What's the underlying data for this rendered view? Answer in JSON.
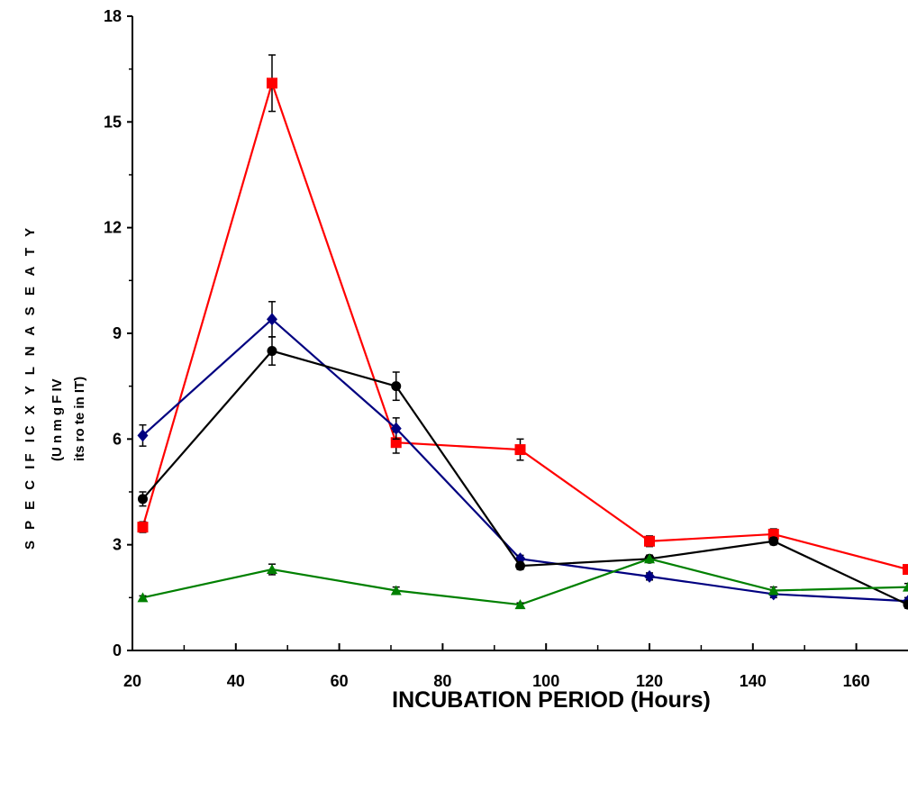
{
  "chart_data": {
    "type": "line",
    "title": "",
    "xlabel": "INCUBATION PERIOD (Hours)",
    "ylabel": {
      "main": "S P E C IF IC X Y L   N A S E A   T Y",
      "line2": "(U n   m g   F   IV",
      "line3": "its   ro te   in   IT)"
    },
    "xlim": [
      20,
      170
    ],
    "ylim": [
      0,
      18
    ],
    "x_ticks": [
      20,
      40,
      60,
      80,
      100,
      120,
      140,
      160
    ],
    "y_ticks": [
      0,
      3,
      6,
      9,
      12,
      15,
      18
    ],
    "grid": false,
    "legend": "none",
    "x": [
      22,
      47,
      71,
      95,
      120,
      144,
      170
    ],
    "series": [
      {
        "color": "#ff0000",
        "marker": "square",
        "values": [
          3.5,
          16.1,
          5.9,
          5.7,
          3.1,
          3.3,
          2.3
        ],
        "errors": [
          0.15,
          0.8,
          0.3,
          0.3,
          0.15,
          0.15,
          0.1
        ]
      },
      {
        "color": "#000080",
        "marker": "diamond",
        "values": [
          6.1,
          9.4,
          6.3,
          2.6,
          2.1,
          1.6,
          1.4
        ],
        "errors": [
          0.3,
          0.5,
          0.3,
          0.1,
          0.1,
          0.1,
          0.1
        ]
      },
      {
        "color": "#000000",
        "marker": "circle",
        "values": [
          4.3,
          8.5,
          7.5,
          2.4,
          2.6,
          3.1,
          1.3
        ],
        "errors": [
          0.2,
          0.4,
          0.4,
          0.1,
          0.1,
          0.1,
          0.1
        ]
      },
      {
        "color": "#008000",
        "marker": "triangle",
        "values": [
          1.5,
          2.3,
          1.7,
          1.3,
          2.6,
          1.7,
          1.8
        ],
        "errors": [
          0.05,
          0.15,
          0.1,
          0.05,
          0.1,
          0.1,
          0.1
        ]
      }
    ]
  }
}
